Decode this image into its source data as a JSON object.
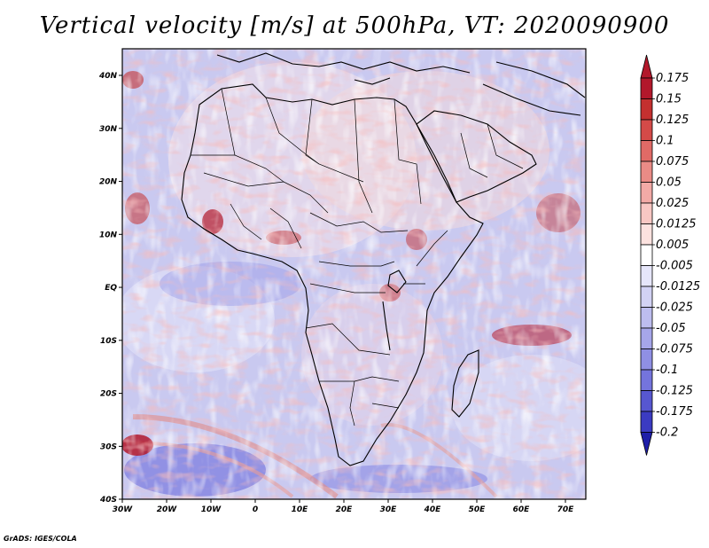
{
  "title": "Vertical velocity [m/s] at 500hPa, VT: 2020090900",
  "footer": "GrADS: IGES/COLA",
  "axes": {
    "lon_ticks": [
      "30W",
      "20W",
      "10W",
      "0",
      "10E",
      "20E",
      "30E",
      "40E",
      "50E",
      "60E",
      "70E"
    ],
    "lat_ticks": [
      "40N",
      "30N",
      "20N",
      "10N",
      "EQ",
      "10S",
      "20S",
      "30S",
      "40S"
    ],
    "lon_range": [
      -30,
      75
    ],
    "lat_range": [
      -40,
      45
    ]
  },
  "colorbar": {
    "labels": [
      "0.175",
      "0.15",
      "0.125",
      "0.1",
      "0.075",
      "0.05",
      "0.025",
      "0.0125",
      "0.005",
      "-0.005",
      "-0.0125",
      "-0.025",
      "-0.05",
      "-0.075",
      "-0.1",
      "-0.125",
      "-0.175",
      "-0.2"
    ],
    "colors": [
      "#b2182b",
      "#c4302f",
      "#d44a48",
      "#e06a66",
      "#ea8b86",
      "#f2aaa6",
      "#f8c7c3",
      "#fce2df",
      "#ffffff",
      "#e6e6fa",
      "#d2d2f4",
      "#bdbdef",
      "#a6a6ea",
      "#8f8fe4",
      "#7474dc",
      "#5757d0",
      "#3b3bc2",
      "#1e1ea8"
    ]
  },
  "colors": {
    "background_blue": "#c9c9f0",
    "coast": "#000000"
  }
}
